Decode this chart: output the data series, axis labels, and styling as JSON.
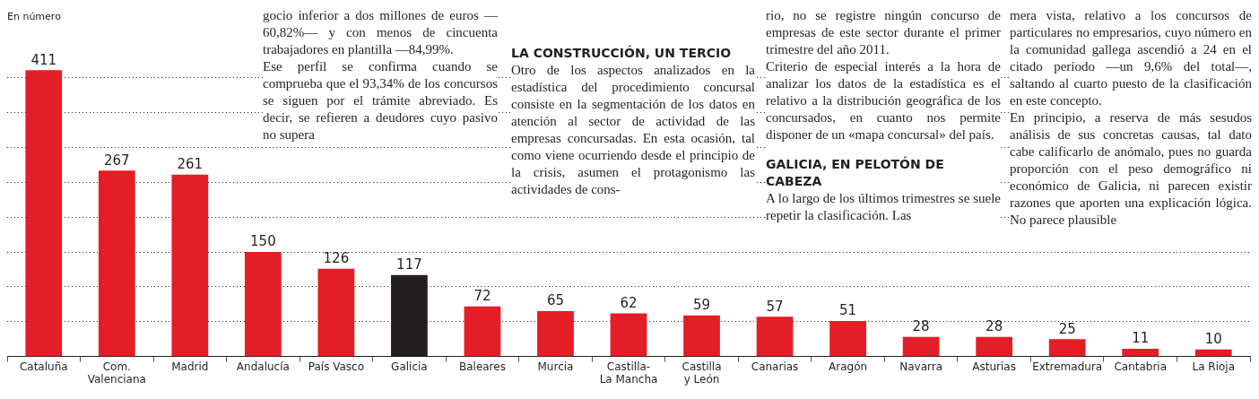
{
  "chart_data": {
    "type": "bar",
    "ylabel": "En número",
    "categories": [
      "Cataluña",
      "Com. Valenciana",
      "Madrid",
      "Andalucía",
      "País Vasco",
      "Galicia",
      "Baleares",
      "Murcia",
      "Castilla-La Mancha",
      "Castilla y León",
      "Canarias",
      "Aragón",
      "Navarra",
      "Asturias",
      "Extremadura",
      "Cantabria",
      "La Rioja"
    ],
    "values": [
      411,
      267,
      261,
      150,
      126,
      117,
      72,
      65,
      62,
      59,
      57,
      51,
      28,
      28,
      25,
      11,
      10
    ],
    "colors": [
      "#e31e26",
      "#e31e26",
      "#e31e26",
      "#e31e26",
      "#e31e26",
      "#231f20",
      "#e31e26",
      "#e31e26",
      "#e31e26",
      "#e31e26",
      "#e31e26",
      "#e31e26",
      "#e31e26",
      "#e31e26",
      "#e31e26",
      "#e31e26",
      "#e31e26"
    ],
    "data_labels": true,
    "grid": "y",
    "yticks": [
      {
        "value": 50,
        "label": null
      },
      {
        "value": 100,
        "label": null
      },
      {
        "value": 150,
        "label": null
      },
      {
        "value": 200,
        "label": null
      },
      {
        "value": 250,
        "label": null
      },
      {
        "value": 300,
        "label": null
      },
      {
        "value": 350,
        "label": null
      },
      {
        "value": 400,
        "label": null
      }
    ],
    "annotations": [
      "gocio inferior a dos millones de euros —60,82%— y con menos de cincuenta trabajadores en plantilla —84,99%.",
      "Ese perfil se confirma cuando se comprueba que el 93,34% de los concursos se siguen por el trámite abreviado. Es decir, se refieren a deudores cuyo pasivo no supera",
      "LA CONSTRUCCIÓN, UN TERCIO",
      "Otro de los aspectos analizados en la estadística del procedimiento concursal consiste en la segmentación de los datos en atención al sector de actividad de las empresas concursadas. En esta ocasión, tal como viene ocurriendo desde el principio de la crisis, asumen el protagonismo las actividades de cons-",
      "rio, no se registre ningún concurso de empresas de este sector durante el primer trimestre del año 2011.",
      "Criterio de especial interés a la hora de analizar los datos de la estadística es el relativo a la distribución geográfica de los concursados, en cuanto nos permite disponer de un «mapa concursal» del país.",
      "GALICIA, EN PELOTÓN DE CABEZA",
      "A lo largo de los últimos trimestres se suele repetir la clasificación. Las",
      "mera vista, relativo a los concursos de particulares no empresarios, cuyo número en la comunidad gallega ascendió a 24 en el citado período —un 9,6% del total—, saltando al cuarto puesto de la clasificación en este concepto.",
      "En principio, a reserva de más sesudos análisis de sus concretas causas, tal dato cabe calificarlo de anómalo, pues no guarda proporción con el peso demográfico ni económico de Galicia, ni parecen existir razones que aporten una explicación lógica. No parece plausible"
    ]
  }
}
